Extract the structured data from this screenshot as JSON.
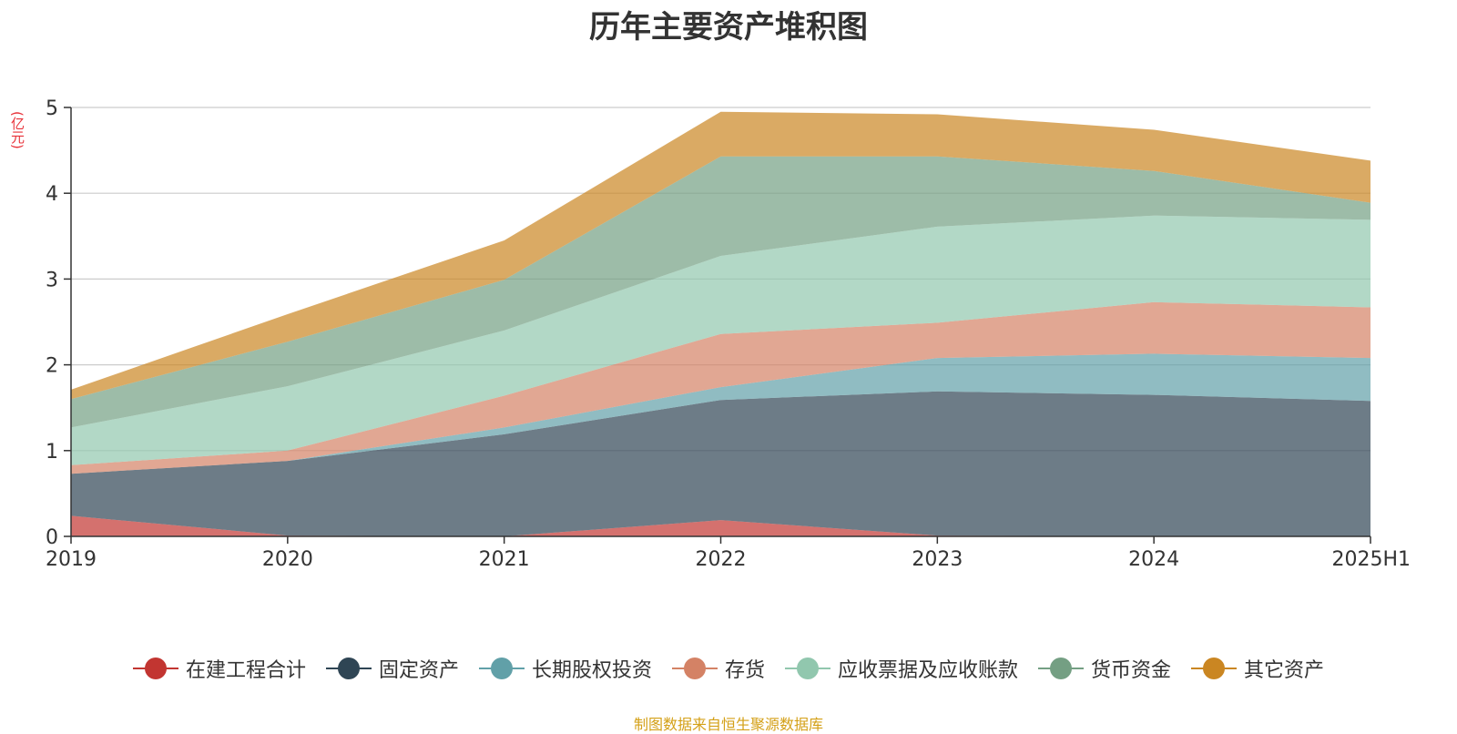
{
  "title": "历年主要资产堆积图",
  "unit": "(亿元)",
  "source": "制图数据来自恒生聚源数据库",
  "chart_data": {
    "type": "area",
    "stacked": true,
    "categories": [
      "2019",
      "2020",
      "2021",
      "2022",
      "2023",
      "2024",
      "2025H1"
    ],
    "ylim": [
      0,
      5
    ],
    "yticks": [
      "0",
      "1",
      "2",
      "3",
      "4",
      "5"
    ],
    "grid": true,
    "legend_position": "bottom",
    "series": [
      {
        "name": "在建工程合计",
        "color": "#c23531",
        "values": [
          0.24,
          0.01,
          0.0,
          0.19,
          0.01,
          0.0,
          0.0
        ]
      },
      {
        "name": "固定资产",
        "color": "#2f4554",
        "values": [
          0.49,
          0.87,
          1.19,
          1.4,
          1.68,
          1.65,
          1.58
        ]
      },
      {
        "name": "长期股权投资",
        "color": "#61a0a8",
        "values": [
          0.0,
          0.0,
          0.08,
          0.15,
          0.39,
          0.48,
          0.5
        ]
      },
      {
        "name": "存货",
        "color": "#d48265",
        "values": [
          0.1,
          0.12,
          0.37,
          0.62,
          0.41,
          0.6,
          0.59
        ]
      },
      {
        "name": "应收票据及应收账款",
        "color": "#91c7ae",
        "values": [
          0.44,
          0.75,
          0.76,
          0.91,
          1.12,
          1.01,
          1.02
        ]
      },
      {
        "name": "货币资金",
        "color": "#749f83",
        "values": [
          0.33,
          0.52,
          0.59,
          1.16,
          0.82,
          0.52,
          0.2
        ]
      },
      {
        "name": "其它资产",
        "color": "#ca8622",
        "values": [
          0.11,
          0.32,
          0.46,
          0.52,
          0.49,
          0.48,
          0.49
        ]
      }
    ]
  }
}
